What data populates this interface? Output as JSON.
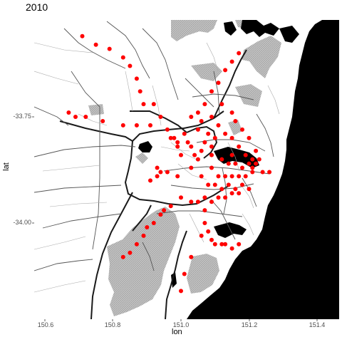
{
  "title": "2010",
  "xlabel": "lon",
  "ylabel": "lat",
  "x_ticks": [
    "150.6",
    "150.8",
    "151.0",
    "151.2",
    "151.4"
  ],
  "y_ticks": [
    "-33.75",
    "-34.00"
  ],
  "colors": {
    "points": "#ff0000",
    "ocean": "#000000",
    "parkland": "#b8b8b8",
    "roads": "#000000"
  },
  "chart_data": {
    "type": "scatter",
    "title": "2010",
    "xlabel": "lon",
    "ylabel": "lat",
    "xlim": [
      150.57,
      151.45
    ],
    "ylim": [
      -34.23,
      -33.48
    ],
    "basemap": "map tiles (roads, parkland, ocean)",
    "grid": false,
    "legend": "none",
    "points": [
      [
        150.71,
        -33.56
      ],
      [
        150.75,
        -33.58
      ],
      [
        150.79,
        -33.59
      ],
      [
        150.83,
        -33.61
      ],
      [
        150.85,
        -33.63
      ],
      [
        150.87,
        -33.66
      ],
      [
        150.88,
        -33.69
      ],
      [
        150.89,
        -33.72
      ],
      [
        150.67,
        -33.74
      ],
      [
        150.69,
        -33.75
      ],
      [
        150.72,
        -33.75
      ],
      [
        150.77,
        -33.76
      ],
      [
        150.83,
        -33.77
      ],
      [
        150.87,
        -33.77
      ],
      [
        150.91,
        -33.77
      ],
      [
        150.92,
        -33.72
      ],
      [
        150.94,
        -33.75
      ],
      [
        150.96,
        -33.78
      ],
      [
        150.97,
        -33.8
      ],
      [
        150.99,
        -33.81
      ],
      [
        151.01,
        -33.79
      ],
      [
        151.02,
        -33.81
      ],
      [
        151.03,
        -33.82
      ],
      [
        151.04,
        -33.84
      ],
      [
        151.0,
        -33.84
      ],
      [
        150.99,
        -33.82
      ],
      [
        150.98,
        -33.8
      ],
      [
        151.03,
        -33.75
      ],
      [
        151.05,
        -33.74
      ],
      [
        151.07,
        -33.72
      ],
      [
        151.09,
        -33.69
      ],
      [
        151.11,
        -33.67
      ],
      [
        151.13,
        -33.64
      ],
      [
        151.15,
        -33.62
      ],
      [
        151.17,
        -33.6
      ],
      [
        151.09,
        -33.75
      ],
      [
        151.11,
        -33.77
      ],
      [
        151.13,
        -33.79
      ],
      [
        151.15,
        -33.8
      ],
      [
        151.17,
        -33.82
      ],
      [
        151.19,
        -33.84
      ],
      [
        151.2,
        -33.86
      ],
      [
        151.21,
        -33.87
      ],
      [
        151.21,
        -33.88
      ],
      [
        151.22,
        -33.86
      ],
      [
        151.21,
        -33.85
      ],
      [
        151.24,
        -33.88
      ],
      [
        151.26,
        -33.88
      ],
      [
        151.1,
        -33.8
      ],
      [
        151.09,
        -33.82
      ],
      [
        151.09,
        -33.84
      ],
      [
        151.09,
        -33.87
      ],
      [
        151.11,
        -33.89
      ],
      [
        151.13,
        -33.89
      ],
      [
        151.15,
        -33.89
      ],
      [
        151.17,
        -33.89
      ],
      [
        151.19,
        -33.89
      ],
      [
        151.08,
        -33.79
      ],
      [
        151.07,
        -33.81
      ],
      [
        151.06,
        -33.83
      ],
      [
        151.05,
        -33.85
      ],
      [
        151.03,
        -33.87
      ],
      [
        150.99,
        -33.89
      ],
      [
        150.96,
        -33.88
      ],
      [
        150.94,
        -33.88
      ],
      [
        150.93,
        -33.89
      ],
      [
        150.91,
        -33.9
      ],
      [
        150.93,
        -33.87
      ],
      [
        151.06,
        -33.89
      ],
      [
        151.08,
        -33.91
      ],
      [
        151.1,
        -33.91
      ],
      [
        151.12,
        -33.92
      ],
      [
        151.14,
        -33.91
      ],
      [
        151.16,
        -33.92
      ],
      [
        151.18,
        -33.91
      ],
      [
        151.2,
        -33.92
      ],
      [
        151.0,
        -33.94
      ],
      [
        151.03,
        -33.95
      ],
      [
        151.05,
        -33.95
      ],
      [
        151.07,
        -33.94
      ],
      [
        151.09,
        -33.95
      ],
      [
        151.11,
        -33.94
      ],
      [
        151.13,
        -33.94
      ],
      [
        151.15,
        -33.93
      ],
      [
        151.17,
        -33.93
      ],
      [
        150.97,
        -33.96
      ],
      [
        150.95,
        -33.97
      ],
      [
        150.94,
        -33.98
      ],
      [
        150.92,
        -34.0
      ],
      [
        150.9,
        -34.01
      ],
      [
        150.89,
        -34.03
      ],
      [
        150.87,
        -34.05
      ],
      [
        150.85,
        -34.07
      ],
      [
        150.83,
        -34.08
      ],
      [
        151.07,
        -33.97
      ],
      [
        151.07,
        -34.0
      ],
      [
        151.08,
        -34.02
      ],
      [
        151.09,
        -34.04
      ],
      [
        151.1,
        -34.05
      ],
      [
        151.12,
        -34.05
      ],
      [
        151.13,
        -34.05
      ],
      [
        151.15,
        -34.06
      ],
      [
        151.17,
        -34.05
      ],
      [
        151.06,
        -34.03
      ],
      [
        151.03,
        -34.08
      ],
      [
        151.01,
        -34.12
      ],
      [
        151.0,
        -34.16
      ],
      [
        151.14,
        -33.86
      ],
      [
        151.16,
        -33.86
      ],
      [
        151.12,
        -33.85
      ],
      [
        151.15,
        -33.84
      ],
      [
        151.18,
        -33.87
      ],
      [
        151.05,
        -33.78
      ],
      [
        151.06,
        -33.76
      ],
      [
        151.12,
        -33.72
      ],
      [
        151.15,
        -33.74
      ],
      [
        151.16,
        -33.76
      ],
      [
        151.18,
        -33.78
      ],
      [
        151.2,
        -33.8
      ],
      [
        151.22,
        -33.83
      ],
      [
        151.23,
        -33.85
      ]
    ]
  }
}
